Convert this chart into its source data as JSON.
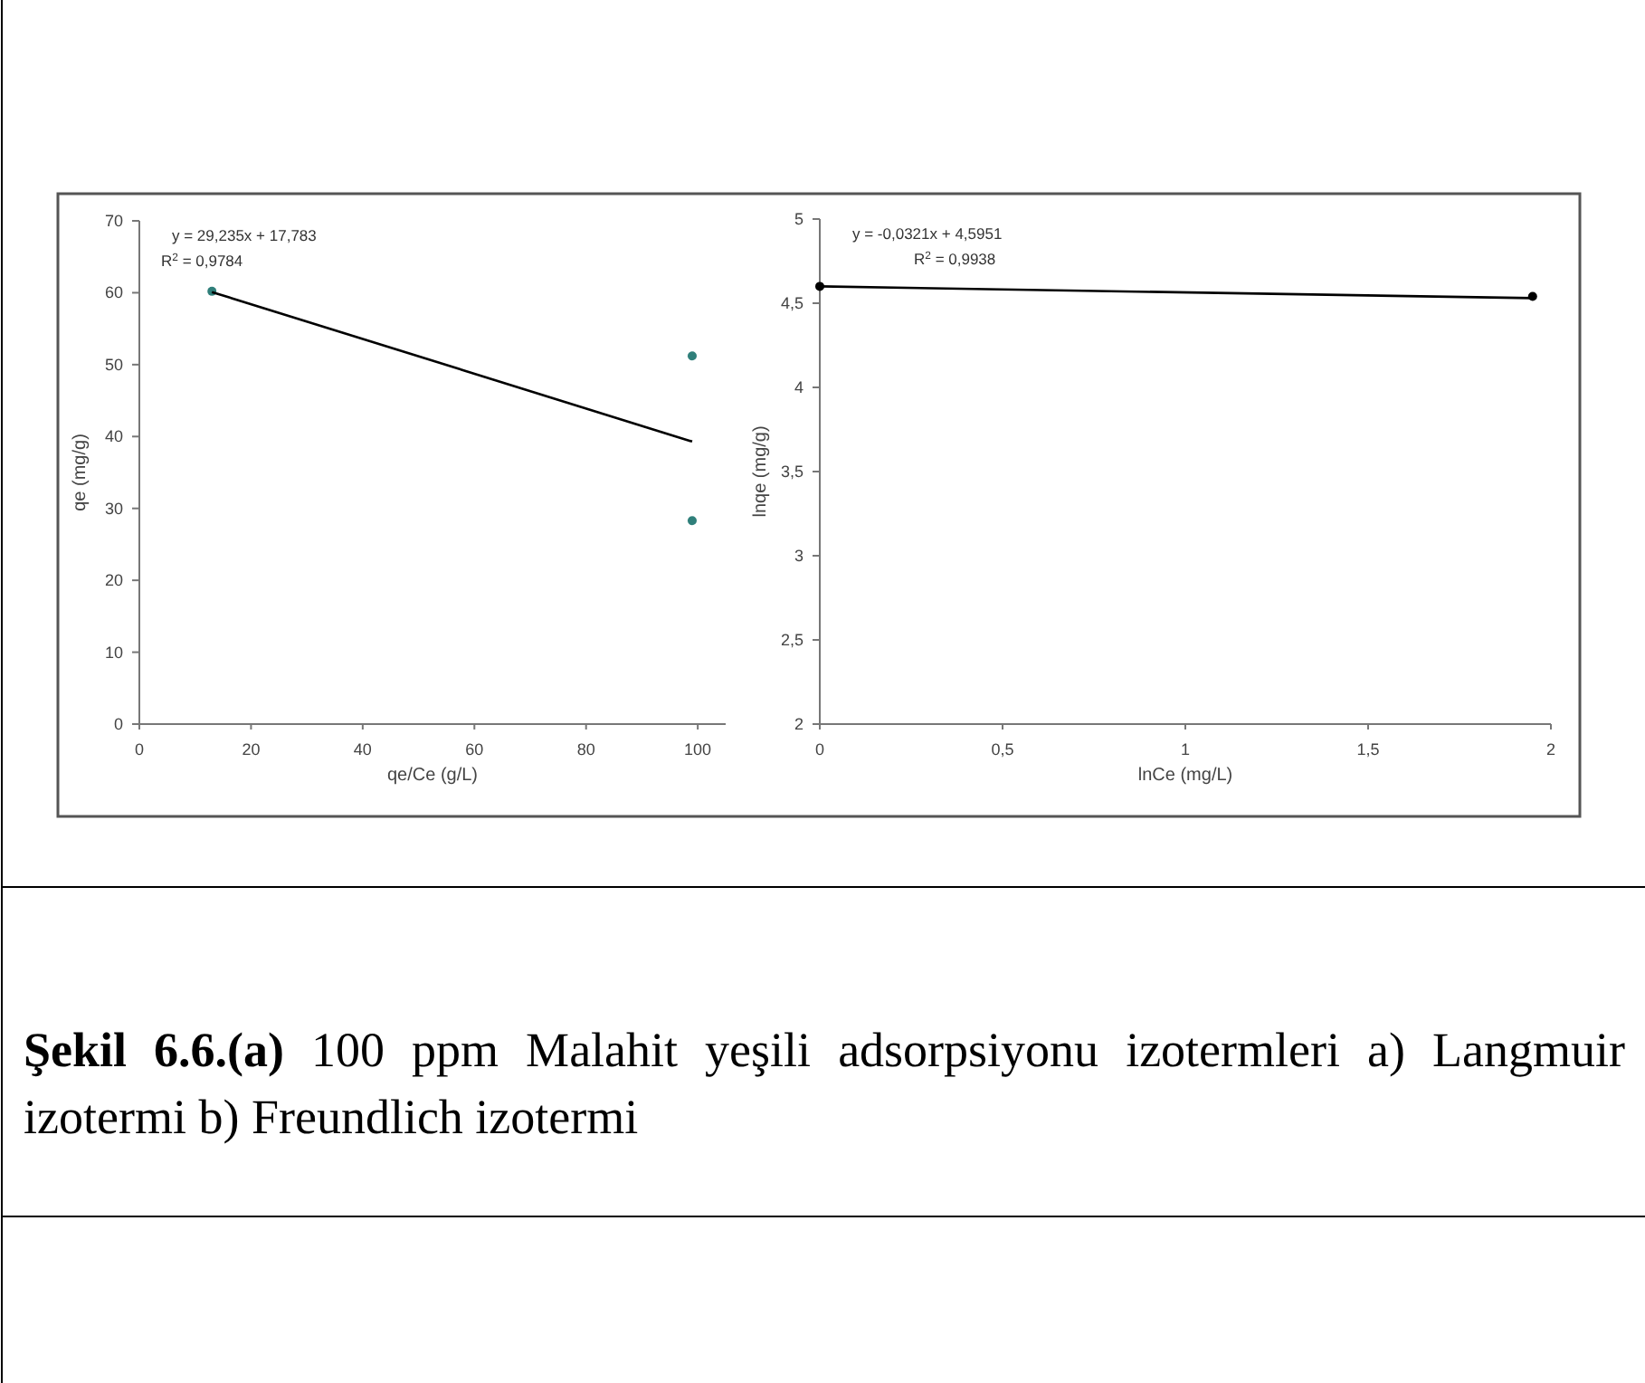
{
  "chart_data": [
    {
      "type": "scatter",
      "xlabel": "qe/Ce (g/L)",
      "ylabel": "qe (mg/g)",
      "xlim": [
        0,
        105
      ],
      "xticks": [
        0,
        20,
        40,
        60,
        80,
        100
      ],
      "ylim": [
        0,
        70
      ],
      "yticks": [
        0,
        10,
        20,
        30,
        40,
        50,
        60,
        70
      ],
      "grid": false,
      "annotations": [
        "y = 29,235x + 17,783",
        "R$^{2}$ = 0,9784"
      ],
      "series": [
        {
          "marker": "circle",
          "color": "#2f7f7a",
          "x": [
            13,
            99,
            99
          ],
          "values": [
            60.2,
            51.2,
            28.3
          ]
        },
        {
          "type": "line",
          "color": "#000000",
          "x": [
            13,
            99
          ],
          "values": [
            60.1,
            39.3
          ]
        }
      ]
    },
    {
      "type": "scatter",
      "xlabel": "lnCe (mg/L)",
      "ylabel": "lnqe (mg/g)",
      "xlim": [
        0,
        2
      ],
      "xticks": [
        0,
        {
          "value": 0.5,
          "label": "0,5"
        },
        1,
        {
          "value": 1.5,
          "label": "1,5"
        },
        2
      ],
      "ylim": [
        2,
        5
      ],
      "yticks": [
        2,
        {
          "value": 2.5,
          "label": "2,5"
        },
        3,
        {
          "value": 3.5,
          "label": "3,5"
        },
        4,
        {
          "value": 4.5,
          "label": "4,5"
        },
        5
      ],
      "grid": false,
      "annotations": [
        "y = -0,0321x + 4,5951",
        "R$^{2}$ = 0,9938",
        "Şekil 6.6.(a)",
        "100 ppm Malahit yeşili adsorpsiyonu izotermleri a) Langmuir izotermi b) Freundlich izotermi"
      ],
      "series": [
        {
          "marker": "circle",
          "color": "#000000",
          "x": [
            0,
            1.95
          ],
          "values": [
            4.6,
            4.54
          ]
        },
        {
          "type": "line",
          "color": "#000000",
          "x": [
            0,
            1.95
          ],
          "values": [
            4.6,
            4.53
          ]
        }
      ]
    }
  ]
}
